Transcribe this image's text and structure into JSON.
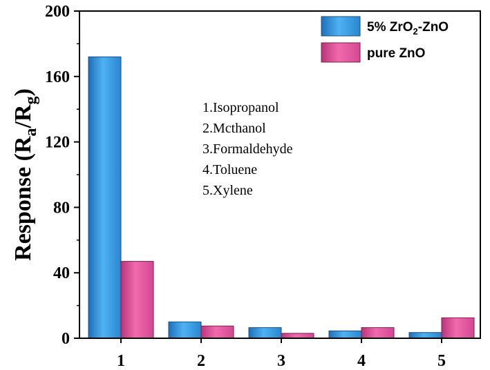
{
  "chart_data": {
    "type": "bar",
    "categories": [
      "1",
      "2",
      "3",
      "4",
      "5"
    ],
    "series": [
      {
        "name": "5% ZrO2-ZnO",
        "values": [
          172,
          10,
          6.5,
          4.5,
          3.5
        ],
        "color": "#3a97de"
      },
      {
        "name": "pure ZnO",
        "values": [
          47,
          7.5,
          3,
          6.5,
          12.5
        ],
        "color": "#dc4f97"
      }
    ],
    "legend": {
      "series1": {
        "main": "5% ZrO",
        "sub": "2",
        "tail": "-ZnO"
      },
      "series2": {
        "main": "pure ZnO"
      }
    },
    "ylabel": {
      "main": "Response (R",
      "sub1": "a",
      "mid": "/R",
      "sub2": "g",
      "tail": ")"
    },
    "xlabel": "",
    "ylim": [
      0,
      200
    ],
    "yticks": [
      "0",
      "40",
      "80",
      "120",
      "160",
      "200"
    ],
    "annotations": [
      "1.Isopropanol",
      "2.Mcthanol",
      "3.Formaldehyde",
      "4.Toluene",
      "5.Xylene"
    ],
    "legend_position": "top-right",
    "grid": false
  }
}
